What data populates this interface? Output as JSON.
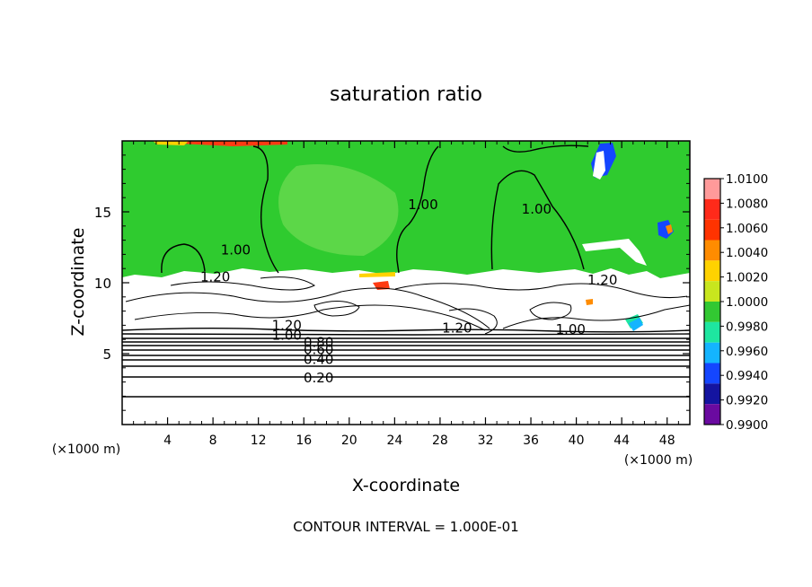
{
  "chart_data": {
    "type": "heatmap",
    "title": "saturation ratio",
    "xlabel": "X-coordinate",
    "ylabel": "Z-coordinate",
    "x_units": "(×1000 m)",
    "z_units": "(×1000 m)",
    "xlim": [
      0,
      50
    ],
    "ylim": [
      0,
      20
    ],
    "x_ticks": [
      4,
      8,
      12,
      16,
      20,
      24,
      28,
      32,
      36,
      40,
      44,
      48
    ],
    "y_ticks": [
      5,
      10,
      15
    ],
    "footer": "CONTOUR INTERVAL = 1.000E-01",
    "colorbar": {
      "levels": [
        "1.0100",
        "1.0080",
        "1.0060",
        "1.0040",
        "1.0020",
        "1.0000",
        "0.9980",
        "0.9960",
        "0.9940",
        "0.9920",
        "0.9900"
      ],
      "colors": [
        "#ff9a9a",
        "#ff2a1a",
        "#ff3300",
        "#ff8c00",
        "#ffd200",
        "#c8e61e",
        "#32c832",
        "#1ee6a0",
        "#14b4ff",
        "#1446ff",
        "#1414a0",
        "#6a0aa0"
      ]
    },
    "fill_regions": {
      "upper_layer_value": "1.0000",
      "upper_layer_z": [
        10.5,
        19.8
      ],
      "lower_layer": "white (outside colour scale)"
    },
    "contour_labels": [
      {
        "text": "1.00",
        "x": 10.0,
        "z": 12.3
      },
      {
        "text": "1.00",
        "x": 26.5,
        "z": 15.5
      },
      {
        "text": "1.00",
        "x": 36.5,
        "z": 15.2
      },
      {
        "text": "1.20",
        "x": 8.2,
        "z": 10.4
      },
      {
        "text": "1.20",
        "x": 42.3,
        "z": 10.2
      },
      {
        "text": "1.20",
        "x": 14.5,
        "z": 7.0
      },
      {
        "text": "1.20",
        "x": 29.5,
        "z": 6.8
      },
      {
        "text": "1.00",
        "x": 14.5,
        "z": 6.3
      },
      {
        "text": "1.00",
        "x": 39.5,
        "z": 6.7
      },
      {
        "text": "0.80",
        "x": 17.3,
        "z": 5.8
      },
      {
        "text": "0.60",
        "x": 17.3,
        "z": 5.3
      },
      {
        "text": "0.40",
        "x": 17.3,
        "z": 4.6
      },
      {
        "text": "0.20",
        "x": 17.3,
        "z": 3.3
      }
    ]
  }
}
